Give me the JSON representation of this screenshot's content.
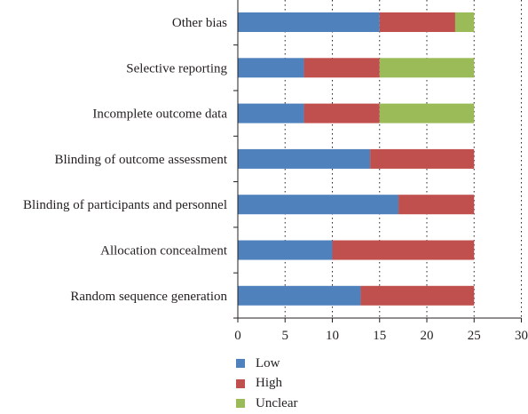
{
  "chart_data": {
    "type": "bar",
    "orientation": "horizontal",
    "stacked": true,
    "categories": [
      "Other bias",
      "Selective reporting",
      "Incomplete outcome data",
      "Blinding of outcome assessment",
      "Blinding of participants and personnel",
      "Allocation concealment",
      "Random sequence generation"
    ],
    "series": [
      {
        "name": "Low",
        "color": "#4f81bd",
        "values": [
          15,
          7,
          7,
          14,
          17,
          10,
          13
        ]
      },
      {
        "name": "High",
        "color": "#c0504d",
        "values": [
          8,
          8,
          8,
          11,
          8,
          15,
          12
        ]
      },
      {
        "name": "Unclear",
        "color": "#9bbb59",
        "values": [
          2,
          10,
          10,
          0,
          0,
          0,
          0
        ]
      }
    ],
    "xlim": [
      0,
      30
    ],
    "xticks": [
      "0",
      "5",
      "10",
      "15",
      "20",
      "25",
      "30"
    ],
    "grid": "vertical dotted",
    "legend_position": "bottom"
  }
}
